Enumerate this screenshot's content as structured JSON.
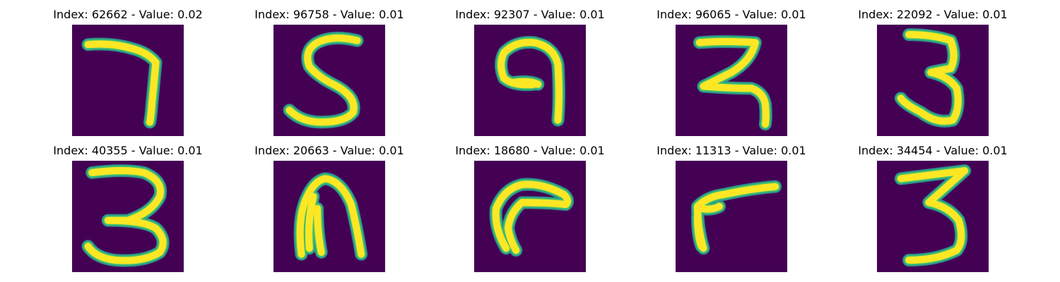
{
  "colors": {
    "background": "#440154",
    "stroke_outer": "#2c8f8c",
    "stroke_mid": "#3fbf71",
    "stroke_inner": "#fde725"
  },
  "panels": [
    {
      "title": "Index: 62662 - Value: 0.02",
      "digit": "7"
    },
    {
      "title": "Index: 96758 - Value: 0.01",
      "digit": "5"
    },
    {
      "title": "Index: 92307 - Value: 0.01",
      "digit": "9"
    },
    {
      "title": "Index: 96065 - Value: 0.01",
      "digit": "3"
    },
    {
      "title": "Index: 22092 - Value: 0.01",
      "digit": "3"
    },
    {
      "title": "Index: 40355 - Value: 0.01",
      "digit": "3"
    },
    {
      "title": "Index: 20663 - Value: 0.01",
      "digit": "n"
    },
    {
      "title": "Index: 18680 - Value: 0.01",
      "digit": "r"
    },
    {
      "title": "Index: 11313 - Value: 0.01",
      "digit": "r"
    },
    {
      "title": "Index: 34454 - Value: 0.01",
      "digit": "3"
    }
  ]
}
